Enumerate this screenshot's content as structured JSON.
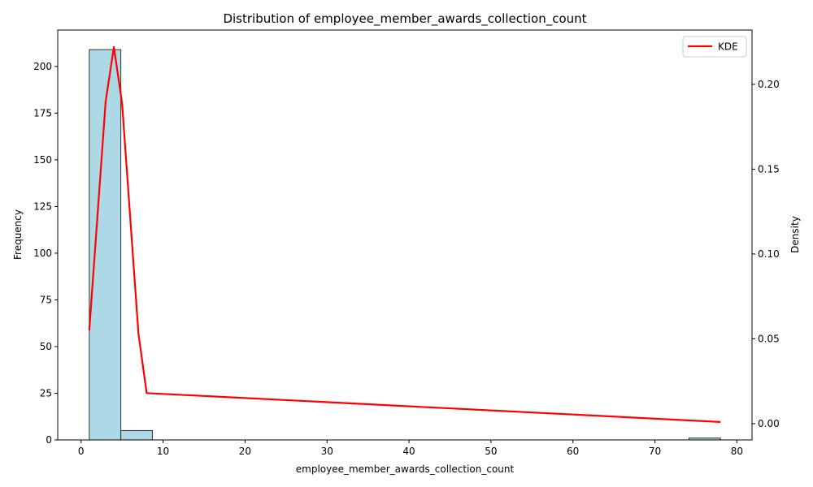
{
  "chart_data": {
    "type": "bar",
    "title": "Distribution of employee_member_awards_collection_count",
    "xlabel": "employee_member_awards_collection_count",
    "ylabel": "Frequency",
    "y2label": "Density",
    "xlim": [
      -2.85,
      81.85
    ],
    "ylim": [
      0,
      219.5
    ],
    "y2lim": [
      -0.0096,
      0.232
    ],
    "xticks": [
      0,
      10,
      20,
      30,
      40,
      50,
      60,
      70,
      80
    ],
    "yticks": [
      0,
      25,
      50,
      75,
      100,
      125,
      150,
      175,
      200
    ],
    "y2ticks": [
      0.0,
      0.05,
      0.1,
      0.15,
      0.2
    ],
    "y2tick_labels": [
      "0.00",
      "0.05",
      "0.10",
      "0.15",
      "0.20"
    ],
    "histogram": {
      "bin_edges": [
        1,
        4.85,
        8.7,
        12.55,
        16.4,
        20.25,
        24.1,
        27.95,
        31.8,
        35.65,
        39.5,
        43.35,
        47.2,
        51.05,
        54.9,
        58.75,
        62.6,
        66.45,
        70.3,
        74.15,
        78
      ],
      "counts": [
        209,
        5,
        0,
        0,
        0,
        0,
        0,
        0,
        0,
        0,
        0,
        0,
        0,
        0,
        0,
        0,
        0,
        0,
        0,
        1
      ],
      "color": "#add8e6",
      "edgecolor": "#333333"
    },
    "kde": {
      "name": "KDE",
      "color": "#ff0000",
      "x": [
        1,
        3,
        4,
        5,
        7,
        8,
        78
      ],
      "y": [
        0.055,
        0.19,
        0.222,
        0.189,
        0.053,
        0.018,
        0.001
      ]
    },
    "legend_placement": "top-right",
    "grid": false
  }
}
